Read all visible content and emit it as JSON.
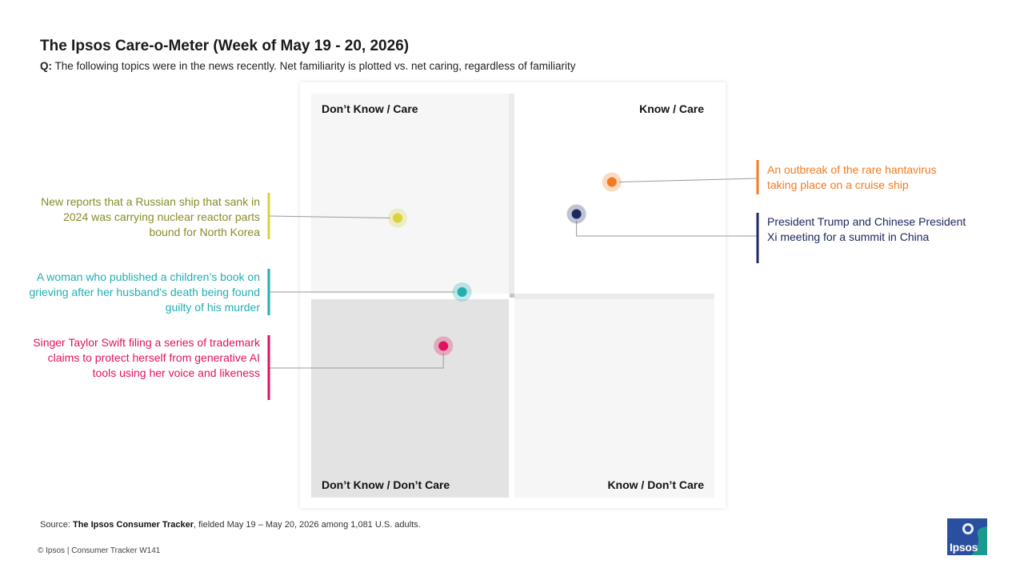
{
  "header": {
    "title": "The Ipsos Care-o-Meter (Week of May 19 - 20, 2026)",
    "question_prefix": "Q:",
    "question_text": "The following topics were in the news recently. Net familiarity is plotted vs. net caring, regardless of familiarity"
  },
  "chart_data": {
    "type": "scatter",
    "xlabel": "",
    "ylabel": "",
    "quadrants": {
      "top_left": "Don’t Know / Care",
      "top_right": "Know / Care",
      "bottom_left": "Don’t Know / Don’t Care",
      "bottom_right": "Know / Don’t Care"
    },
    "axis_note": "Axes unlabeled; values are relative positions: x = net familiarity (0 = quadrant divider), y = net caring (0 = quadrant divider)",
    "points": [
      {
        "label": "An outbreak of the rare hantavirus taking place on a cruise ship",
        "x": 0.48,
        "y": 0.57,
        "color": "#f47a20",
        "side": "right"
      },
      {
        "label": "President Trump and Chinese President Xi meeting for a summit in China",
        "x": 0.31,
        "y": 0.41,
        "color": "#1d2860",
        "side": "right"
      },
      {
        "label": "New reports that a Russian ship that sank in 2024 was carrying nuclear reactor parts bound for North Korea",
        "x": -0.55,
        "y": 0.39,
        "color": "#d9d33c",
        "side": "left"
      },
      {
        "label": "A woman who published a children’s book on grieving after her husband’s death being found guilty of his murder",
        "x": -0.24,
        "y": 0.02,
        "color": "#23aeb0",
        "side": "left"
      },
      {
        "label": "Singer Taylor Swift filing a series of trademark claims to protect herself from generative AI tools using her voice and likeness",
        "x": -0.33,
        "y": -0.25,
        "color": "#e0125f",
        "side": "left"
      }
    ]
  },
  "footer": {
    "source_prefix": "Source:",
    "source_name": "The Ipsos Consumer Tracker",
    "source_rest": ", fielded May 19 – May 20, 2026 among 1,081 U.S. adults.",
    "copyright": "© Ipsos | Consumer Tracker W141",
    "logo_text": "Ipsos"
  },
  "colors": {
    "logo_bg": "#2a4f9e",
    "logo_accent": "#1a9a8e"
  }
}
